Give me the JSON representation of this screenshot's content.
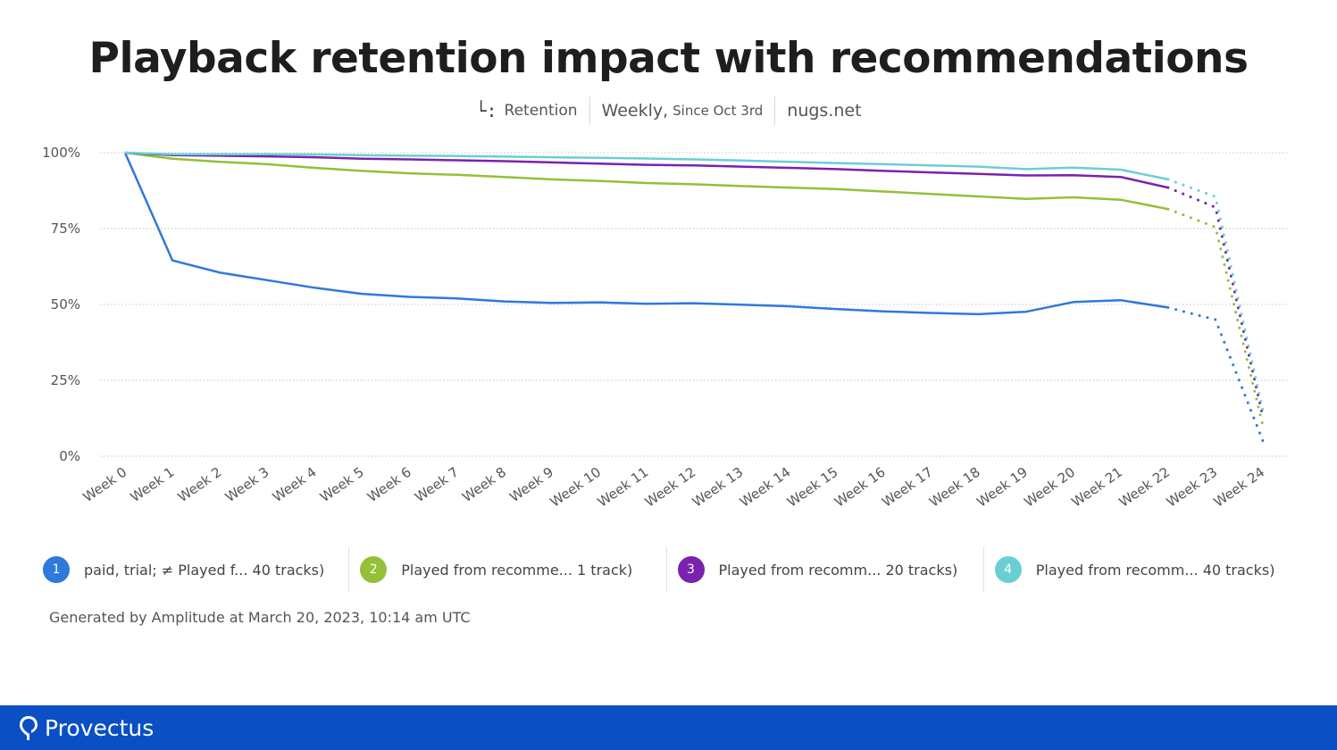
{
  "chart_data": {
    "type": "line",
    "title": "Playback retention impact with recommendations",
    "subtitle": {
      "metric": "Retention",
      "interval": "Weekly,",
      "range": "Since Oct 3rd",
      "site": "nugs.net"
    },
    "categories": [
      "Week 0",
      "Week 1",
      "Week 2",
      "Week 3",
      "Week 4",
      "Week 5",
      "Week 6",
      "Week 7",
      "Week 8",
      "Week 9",
      "Week 10",
      "Week 11",
      "Week 12",
      "Week 13",
      "Week 14",
      "Week 15",
      "Week 16",
      "Week 17",
      "Week 18",
      "Week 19",
      "Week 20",
      "Week 21",
      "Week 22",
      "Week 23",
      "Week 24"
    ],
    "y_ticks": [
      "100%",
      "75%",
      "50%",
      "25%",
      "0%"
    ],
    "ylim": [
      0,
      100
    ],
    "solid_until_index": 22,
    "grid": "horizontal dotted",
    "legend_position": "bottom",
    "series": [
      {
        "badge": "1",
        "name": "paid, trial; ≠ Played f...  40 tracks)",
        "color": "#2f78de",
        "values": [
          100,
          64.5,
          60.5,
          58,
          55.5,
          53.5,
          52.5,
          52,
          51,
          50.5,
          50.7,
          50.2,
          50.4,
          49.9,
          49.4,
          48.5,
          47.7,
          47.2,
          46.8,
          47.6,
          50.8,
          51.4,
          49,
          45,
          5
        ]
      },
      {
        "badge": "2",
        "name": "Played from recomme...   1 track)",
        "color": "#95bf36",
        "values": [
          100,
          98,
          97,
          96.2,
          95,
          94,
          93.2,
          92.7,
          92,
          91.2,
          90.7,
          90,
          89.6,
          89,
          88.5,
          88,
          87.2,
          86.4,
          85.6,
          84.8,
          85.3,
          84.5,
          81.4,
          75.5,
          10
        ]
      },
      {
        "badge": "3",
        "name": "Played from recomm... 20 tracks)",
        "color": "#7a22ad",
        "values": [
          100,
          99.2,
          99,
          98.8,
          98.5,
          98,
          97.8,
          97.5,
          97.2,
          96.8,
          96.4,
          96,
          95.8,
          95.4,
          95,
          94.6,
          94,
          93.5,
          93,
          92.5,
          92.6,
          92,
          88.5,
          82,
          13
        ]
      },
      {
        "badge": "4",
        "name": "Played from recomm... 40 tracks)",
        "color": "#6acfd5",
        "values": [
          100,
          99.5,
          99.5,
          99.5,
          99.4,
          99.2,
          99,
          98.9,
          98.7,
          98.5,
          98.3,
          98.1,
          97.8,
          97.4,
          97,
          96.6,
          96.2,
          95.8,
          95.4,
          94.6,
          95.1,
          94.4,
          91.2,
          85.5,
          15
        ]
      }
    ]
  },
  "generated_text": "Generated by Amplitude at March 20, 2023, 10:14 am UTC",
  "footer": {
    "brand": "Provectus",
    "background": "#0a4fc4",
    "icon": "provectus-logo-icon"
  }
}
